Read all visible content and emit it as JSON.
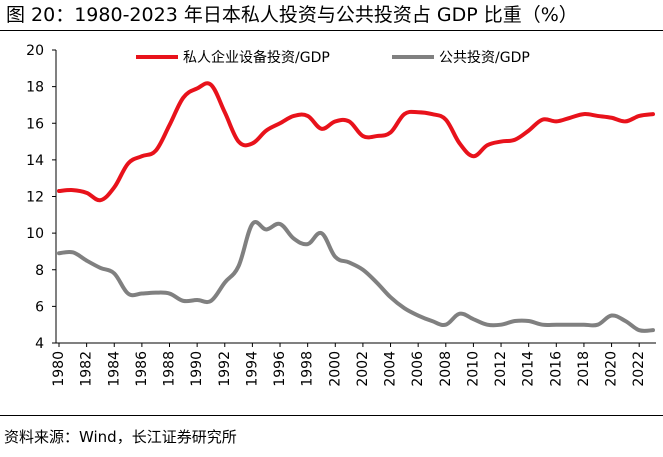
{
  "figure": {
    "title": "图 20：1980-2023 年日本私人投资与公共投资占 GDP 比重（%）",
    "source": "资料来源：Wind，长江证券研究所"
  },
  "chart_data": {
    "type": "line",
    "title": "1980-2023 年日本私人投资与公共投资占 GDP 比重（%）",
    "xlabel": "",
    "ylabel": "",
    "x": [
      1980,
      1981,
      1982,
      1983,
      1984,
      1985,
      1986,
      1987,
      1988,
      1989,
      1990,
      1991,
      1992,
      1993,
      1994,
      1995,
      1996,
      1997,
      1998,
      1999,
      2000,
      2001,
      2002,
      2003,
      2004,
      2005,
      2006,
      2007,
      2008,
      2009,
      2010,
      2011,
      2012,
      2013,
      2014,
      2015,
      2016,
      2017,
      2018,
      2019,
      2020,
      2021,
      2022,
      2023
    ],
    "xlim": [
      1980,
      2023
    ],
    "ylim": [
      4,
      20
    ],
    "yticks": [
      4,
      6,
      8,
      10,
      12,
      14,
      16,
      18,
      20
    ],
    "xticks": [
      1980,
      1982,
      1984,
      1986,
      1988,
      1990,
      1992,
      1994,
      1996,
      1998,
      2000,
      2002,
      2004,
      2006,
      2008,
      2010,
      2012,
      2014,
      2016,
      2018,
      2020,
      2022
    ],
    "legend_position": "top",
    "series": [
      {
        "name": "私人企业设备投资/GDP",
        "color": "#e8121b",
        "values": [
          12.3,
          12.35,
          12.2,
          11.8,
          12.5,
          13.8,
          14.2,
          14.5,
          15.9,
          17.4,
          17.9,
          18.1,
          16.6,
          15.0,
          14.9,
          15.6,
          16.0,
          16.4,
          16.4,
          15.7,
          16.1,
          16.1,
          15.3,
          15.3,
          15.5,
          16.5,
          16.6,
          16.5,
          16.2,
          14.9,
          14.2,
          14.8,
          15.0,
          15.1,
          15.6,
          16.2,
          16.1,
          16.3,
          16.5,
          16.4,
          16.3,
          16.1,
          16.4,
          16.5
        ]
      },
      {
        "name": "公共投资/GDP",
        "color": "#808080",
        "values": [
          8.9,
          8.95,
          8.5,
          8.1,
          7.8,
          6.7,
          6.7,
          6.75,
          6.7,
          6.3,
          6.35,
          6.3,
          7.3,
          8.2,
          10.5,
          10.2,
          10.5,
          9.7,
          9.4,
          10.0,
          8.7,
          8.4,
          8.0,
          7.3,
          6.5,
          5.9,
          5.5,
          5.2,
          5.0,
          5.6,
          5.3,
          5.0,
          5.0,
          5.2,
          5.2,
          5.0,
          5.0,
          5.0,
          5.0,
          5.0,
          5.5,
          5.2,
          4.7,
          4.7
        ]
      }
    ]
  }
}
